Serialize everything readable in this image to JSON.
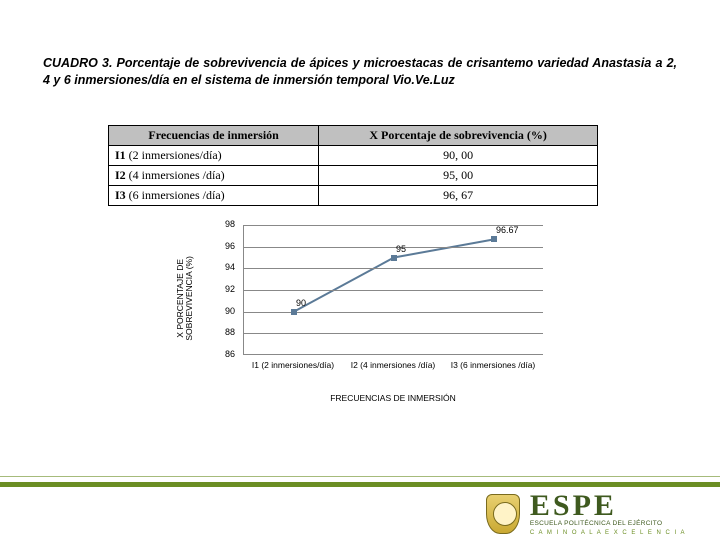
{
  "caption": "CUADRO 3. Porcentaje de sobrevivencia de ápices y microestacas de crisantemo variedad Anastasia a 2, 4 y 6 inmersiones/día en el sistema de inmersión temporal Vio.Ve.Luz",
  "table": {
    "headers": [
      "Frecuencias de inmersión",
      "X Porcentaje de sobrevivencia (%)"
    ],
    "rows": [
      {
        "code": "I1",
        "desc": "(2 inmersiones/día)",
        "value": "90, 00"
      },
      {
        "code": "I2",
        "desc": "(4 inmersiones /día)",
        "value": "95, 00"
      },
      {
        "code": "I3",
        "desc": "(6 inmersiones /día)",
        "value": "96, 67"
      }
    ]
  },
  "chart": {
    "type": "line",
    "y_label": "X PORCENTAJE DE\nSOBREVIVENCIA (%)",
    "x_title": "FRECUENCIAS DE INMERSIÓN",
    "x_labels": [
      "I1 (2 inmersiones/día)",
      "I2 (4 inmersiones\n/día)",
      "I3 (6 inmersiones\n/día)"
    ],
    "y_min": 86,
    "y_max": 98,
    "y_step": 2,
    "values": [
      90,
      95,
      96.67
    ],
    "data_labels": [
      "90",
      "95",
      "96.67"
    ],
    "line_color": "#5b7a97",
    "marker_color": "#5b7a97",
    "grid_color": "#888888",
    "background_color": "#ffffff",
    "label_fontsize": 8.5,
    "marker_size": 6
  },
  "brand": {
    "acronym": "ESPE",
    "line1": "ESCUELA POLITÉCNICA DEL EJÉRCITO",
    "line2": "C A M I N O   A   L A   E X C E L E N C I A"
  }
}
